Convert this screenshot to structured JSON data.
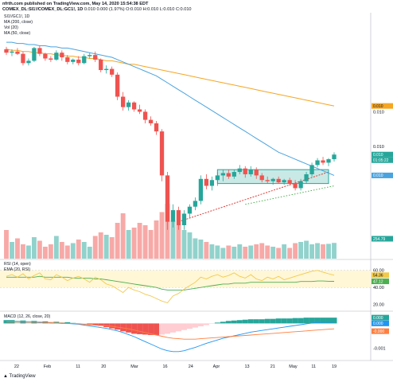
{
  "header": {
    "line1": "nfrth.com published on TradingView.com, May 14, 2020 15:54:38 EDT",
    "symbol": "COMEX_DL:SI1!/COMEX_DL:GC1!, 1D",
    "ohlc": "0.010 0.000 (1.97%) O:0.010 H:0.010 L:0.010 C:0.010"
  },
  "panes": {
    "main_label": "SI1!/GC1!, 1D",
    "ma200_label": "MA (200, close)",
    "vol_label": "Vol (20)",
    "ma50_label": "MA (50, close)",
    "rsi_label": "RSI (14, open)",
    "ema_label": "EMA (20, RSI)",
    "macd_label": "MACD (12, 26, close, 20)"
  },
  "right_axis": {
    "price_ticks": [
      "0.010",
      "0.010"
    ],
    "badge_ma200": "0.010",
    "badge_price": "0.010",
    "badge_timer": "01:05:22",
    "badge_ma50": "0.010",
    "badge_vol": "254.79",
    "rsi_ticks": [
      "60.00",
      "40.00",
      "20.00"
    ],
    "rsi_badges": [
      "54.36",
      "47.12"
    ],
    "macd_badges": [
      "0.000",
      "0.000",
      "-0.000"
    ],
    "macd_tick": "-0.001"
  },
  "x_axis": [
    "22",
    "Feb",
    "11",
    "20",
    "Mar",
    "16",
    "24",
    "Apr",
    "13",
    "21",
    "May",
    "11",
    "19"
  ],
  "footer": {
    "brand": "TradingView"
  },
  "colors": {
    "up": "#26a69a",
    "down": "#ef5350",
    "ma200": "#f5a623",
    "ma50": "#4aa3df",
    "rsi": "#f2c94c",
    "ema": "#4caf50",
    "trend": "#e53935",
    "trend2": "#4caf50",
    "box": "#26a69a",
    "macd": "#2196f3",
    "signal": "#ff7f3f"
  },
  "chart_data": [
    {
      "type": "candlestick",
      "title": "SI1!/GC1!, 1D",
      "series": [
        {
          "name": "SI1!/GC1!",
          "candles": [
            [
              0.01084,
              0.01086,
              0.01079,
              0.01081
            ],
            [
              0.01081,
              0.01084,
              0.01078,
              0.01082
            ],
            [
              0.01082,
              0.01085,
              0.01079,
              0.0108
            ],
            [
              0.0108,
              0.01082,
              0.0107,
              0.01072
            ],
            [
              0.01072,
              0.01076,
              0.0107,
              0.01074
            ],
            [
              0.01074,
              0.01086,
              0.01073,
              0.01085
            ],
            [
              0.01085,
              0.01087,
              0.01078,
              0.0108
            ],
            [
              0.0108,
              0.01081,
              0.01074,
              0.01076
            ],
            [
              0.01076,
              0.01078,
              0.01073,
              0.01075
            ],
            [
              0.01075,
              0.01083,
              0.01074,
              0.01081
            ],
            [
              0.01081,
              0.01083,
              0.01074,
              0.01077
            ],
            [
              0.01077,
              0.01079,
              0.01071,
              0.01073
            ],
            [
              0.01073,
              0.01076,
              0.01071,
              0.01075
            ],
            [
              0.01075,
              0.01078,
              0.0107,
              0.01072
            ],
            [
              0.01072,
              0.0108,
              0.01071,
              0.01078
            ],
            [
              0.01078,
              0.01081,
              0.01076,
              0.01079
            ],
            [
              0.01079,
              0.01082,
              0.01073,
              0.01075
            ],
            [
              0.01075,
              0.01076,
              0.01064,
              0.01066
            ],
            [
              0.01066,
              0.0107,
              0.01063,
              0.01067
            ],
            [
              0.01067,
              0.01069,
              0.0106,
              0.01062
            ],
            [
              0.01062,
              0.01064,
              0.0104,
              0.01043
            ],
            [
              0.01043,
              0.01047,
              0.01031,
              0.01034
            ],
            [
              0.01034,
              0.0104,
              0.01031,
              0.01038
            ],
            [
              0.01038,
              0.01039,
              0.0103,
              0.01032
            ],
            [
              0.01032,
              0.01036,
              0.01028,
              0.0103
            ],
            [
              0.0103,
              0.01032,
              0.0102,
              0.01023
            ],
            [
              0.01023,
              0.01026,
              0.01018,
              0.0102
            ],
            [
              0.0102,
              0.01022,
              0.0101,
              0.01013
            ],
            [
              0.01013,
              0.01015,
              0.0097,
              0.00975
            ],
            [
              0.00975,
              0.00978,
              0.00928,
              0.00935
            ],
            [
              0.00935,
              0.0095,
              0.0093,
              0.00945
            ],
            [
              0.00945,
              0.00948,
              0.00928,
              0.00932
            ],
            [
              0.00932,
              0.00945,
              0.00928,
              0.00942
            ],
            [
              0.00942,
              0.0095,
              0.00938,
              0.00948
            ],
            [
              0.00948,
              0.00956,
              0.00945,
              0.00953
            ],
            [
              0.00953,
              0.00975,
              0.0095,
              0.00972
            ],
            [
              0.00972,
              0.00976,
              0.00963,
              0.00966
            ],
            [
              0.00966,
              0.00974,
              0.00962,
              0.00971
            ],
            [
              0.00971,
              0.00978,
              0.00966,
              0.00975
            ],
            [
              0.00975,
              0.0098,
              0.0097,
              0.00977
            ],
            [
              0.00977,
              0.0098,
              0.00972,
              0.00974
            ],
            [
              0.00974,
              0.0098,
              0.00972,
              0.00978
            ],
            [
              0.00978,
              0.00984,
              0.00976,
              0.00981
            ],
            [
              0.00981,
              0.00983,
              0.00973,
              0.00976
            ],
            [
              0.00976,
              0.00983,
              0.00974,
              0.0098
            ],
            [
              0.0098,
              0.00982,
              0.00972,
              0.00975
            ],
            [
              0.00975,
              0.00977,
              0.00969,
              0.00971
            ],
            [
              0.00971,
              0.00974,
              0.00968,
              0.0097
            ],
            [
              0.0097,
              0.00973,
              0.00967,
              0.00972
            ],
            [
              0.00972,
              0.00974,
              0.00968,
              0.00969
            ],
            [
              0.00969,
              0.00972,
              0.00967,
              0.00971
            ],
            [
              0.00971,
              0.00973,
              0.00966,
              0.00968
            ],
            [
              0.00968,
              0.00971,
              0.00962,
              0.00964
            ],
            [
              0.00964,
              0.00972,
              0.00962,
              0.0097
            ],
            [
              0.0097,
              0.00978,
              0.00968,
              0.00976
            ],
            [
              0.00976,
              0.00986,
              0.00974,
              0.00984
            ],
            [
              0.00984,
              0.0099,
              0.00982,
              0.00988
            ],
            [
              0.00988,
              0.00991,
              0.00984,
              0.00986
            ],
            [
              0.00986,
              0.0099,
              0.00983,
              0.00989
            ],
            [
              0.00989,
              0.00995,
              0.00987,
              0.00993
            ]
          ]
        },
        {
          "name": "MA (200, close)",
          "values": [
            0.01084,
            0.01083,
            0.01083,
            0.01082,
            0.01082,
            0.01081,
            0.01081,
            0.0108,
            0.0108,
            0.01079,
            0.01079,
            0.01078,
            0.01078,
            0.01077,
            0.01077,
            0.01076,
            0.01076,
            0.01075,
            0.01074,
            0.01074,
            0.01073,
            0.01072,
            0.01071,
            0.01071,
            0.0107,
            0.01069,
            0.01068,
            0.01067,
            0.01066,
            0.01065,
            0.01064,
            0.01063,
            0.01062,
            0.01061,
            0.0106,
            0.01059,
            0.01058,
            0.01057,
            0.01056,
            0.01055,
            0.01054,
            0.01053,
            0.01052,
            0.01051,
            0.0105,
            0.01049,
            0.01048,
            0.01047,
            0.01046,
            0.01045,
            0.01044,
            0.01043,
            0.01042,
            0.01041,
            0.0104,
            0.01039,
            0.01038,
            0.01037,
            0.01036,
            0.01035
          ]
        },
        {
          "name": "MA (50, close)",
          "values": [
            0.0109,
            0.0109,
            0.01089,
            0.01089,
            0.01088,
            0.01088,
            0.01087,
            0.01087,
            0.01086,
            0.01086,
            0.01085,
            0.01085,
            0.01084,
            0.01083,
            0.01082,
            0.01081,
            0.0108,
            0.01079,
            0.01078,
            0.01077,
            0.01075,
            0.01073,
            0.01071,
            0.01069,
            0.01067,
            0.01065,
            0.01063,
            0.01061,
            0.01058,
            0.01055,
            0.01052,
            0.01049,
            0.01046,
            0.01043,
            0.0104,
            0.01037,
            0.01034,
            0.01031,
            0.01028,
            0.01025,
            0.01022,
            0.01019,
            0.01016,
            0.01013,
            0.0101,
            0.01007,
            0.01004,
            0.01001,
            0.00998,
            0.00995,
            0.00993,
            0.00991,
            0.00989,
            0.00987,
            0.00985,
            0.00983,
            0.00981,
            0.00979,
            0.00977,
            0.00975
          ]
        }
      ],
      "ylim": [
        0.0091,
        0.0111
      ]
    },
    {
      "type": "bar",
      "title": "Vol (20)",
      "values": [
        120,
        70,
        85,
        60,
        55,
        90,
        75,
        50,
        60,
        95,
        70,
        55,
        65,
        80,
        70,
        50,
        95,
        110,
        100,
        90,
        150,
        190,
        120,
        130,
        150,
        140,
        120,
        160,
        195,
        230,
        160,
        140,
        120,
        110,
        85,
        80,
        70,
        60,
        55,
        45,
        55,
        50,
        60,
        50,
        55,
        60,
        65,
        55,
        50,
        45,
        60,
        45,
        65,
        70,
        75,
        60,
        65,
        60,
        62,
        66
      ],
      "ylim": [
        0,
        250
      ]
    },
    {
      "type": "line",
      "title": "RSI (14, open)",
      "series": [
        {
          "name": "RSI (14, open)",
          "values": [
            53,
            55,
            52,
            56,
            50,
            54,
            57,
            50,
            49,
            55,
            52,
            48,
            51,
            53,
            50,
            46,
            52,
            49,
            44,
            42,
            38,
            34,
            40,
            37,
            35,
            32,
            30,
            27,
            24,
            22,
            30,
            33,
            38,
            42,
            46,
            52,
            50,
            53,
            55,
            52,
            54,
            57,
            53,
            51,
            55,
            50,
            48,
            52,
            50,
            53,
            49,
            51,
            53,
            55,
            57,
            59,
            60,
            58,
            56,
            54.36
          ]
        },
        {
          "name": "EMA (20, RSI)",
          "values": [
            52,
            52,
            52,
            52,
            52,
            52,
            53,
            52,
            52,
            52,
            52,
            52,
            51,
            51,
            51,
            51,
            50,
            50,
            49,
            48,
            47,
            46,
            45,
            44,
            43,
            42,
            41,
            40,
            38,
            37,
            37,
            37,
            37,
            38,
            39,
            40,
            41,
            42,
            43,
            44,
            44,
            45,
            45,
            45,
            46,
            46,
            46,
            46,
            46,
            46,
            46,
            46,
            46,
            47,
            47,
            47,
            47.5,
            47.5,
            47.3,
            47.12
          ]
        }
      ],
      "ylim": [
        15,
        70
      ]
    },
    {
      "type": "bar",
      "title": "MACD (12, 26, close, 20)",
      "series": [
        {
          "name": "Histogram",
          "values": [
            8e-05,
            8e-05,
            7e-05,
            7e-05,
            6e-05,
            6e-05,
            5e-05,
            5e-05,
            4e-05,
            4e-05,
            3e-05,
            3e-05,
            2e-05,
            1e-05,
            0.0,
            -2e-05,
            -4e-05,
            -6e-05,
            -9e-05,
            -0.00012,
            -0.00015,
            -0.00019,
            -0.00022,
            -0.00025,
            -0.00026,
            -0.00027,
            -0.00028,
            -0.00028,
            -0.00027,
            -0.00025,
            -0.00022,
            -0.00019,
            -0.00016,
            -0.00013,
            -0.0001,
            -7e-05,
            -4e-05,
            -1e-05,
            2e-05,
            4e-05,
            6e-05,
            7e-05,
            8e-05,
            9e-05,
            0.0001,
            0.0001,
            0.0001,
            0.00011,
            0.00011,
            0.00012,
            0.00012,
            0.00012,
            0.00013,
            0.00013,
            0.00014,
            0.00014,
            0.00014,
            0.00014,
            0.00014,
            0.00014
          ]
        },
        {
          "name": "MACD",
          "values": [
            4e-05,
            4e-05,
            4e-05,
            3e-05,
            3e-05,
            3e-05,
            2e-05,
            2e-05,
            1e-05,
            1e-05,
            0.0,
            0.0,
            -1e-05,
            -2e-05,
            -4e-05,
            -6e-05,
            -8e-05,
            -0.0001,
            -0.00012,
            -0.00015,
            -0.00018,
            -0.00022,
            -0.00027,
            -0.00032,
            -0.00038,
            -0.00044,
            -0.0005,
            -0.00056,
            -0.00062,
            -0.00066,
            -0.00068,
            -0.00068,
            -0.00066,
            -0.00062,
            -0.00058,
            -0.00053,
            -0.00048,
            -0.00044,
            -0.0004,
            -0.00036,
            -0.00033,
            -0.0003,
            -0.00027,
            -0.00024,
            -0.00021,
            -0.00019,
            -0.00017,
            -0.00015,
            -0.00013,
            -0.00011,
            -9e-05,
            -7e-05,
            -5e-05,
            -3e-05,
            -1e-05,
            1e-05,
            2e-05,
            3e-05,
            3e-05,
            3e-05
          ]
        },
        {
          "name": "Signal",
          "values": [
            4e-05,
            4e-05,
            4e-05,
            4e-05,
            3e-05,
            3e-05,
            3e-05,
            2e-05,
            2e-05,
            1e-05,
            1e-05,
            0.0,
            0.0,
            -1e-05,
            -2e-05,
            -3e-05,
            -4e-05,
            -5e-05,
            -6e-05,
            -7e-05,
            -9e-05,
            -0.00011,
            -0.00013,
            -0.00016,
            -0.00019,
            -0.00022,
            -0.00025,
            -0.00028,
            -0.00031,
            -0.00034,
            -0.00036,
            -0.00037,
            -0.00038,
            -0.00038,
            -0.00038,
            -0.00037,
            -0.00036,
            -0.00035,
            -0.00034,
            -0.00033,
            -0.00032,
            -0.00031,
            -0.0003,
            -0.00029,
            -0.00028,
            -0.00027,
            -0.00026,
            -0.00025,
            -0.00024,
            -0.00023,
            -0.00022,
            -0.00021,
            -0.0002,
            -0.00019,
            -0.00018,
            -0.00017,
            -0.00016,
            -0.00015,
            -0.00014,
            -0.00013
          ]
        }
      ],
      "ylim": [
        -0.0008,
        0.0002
      ]
    }
  ]
}
